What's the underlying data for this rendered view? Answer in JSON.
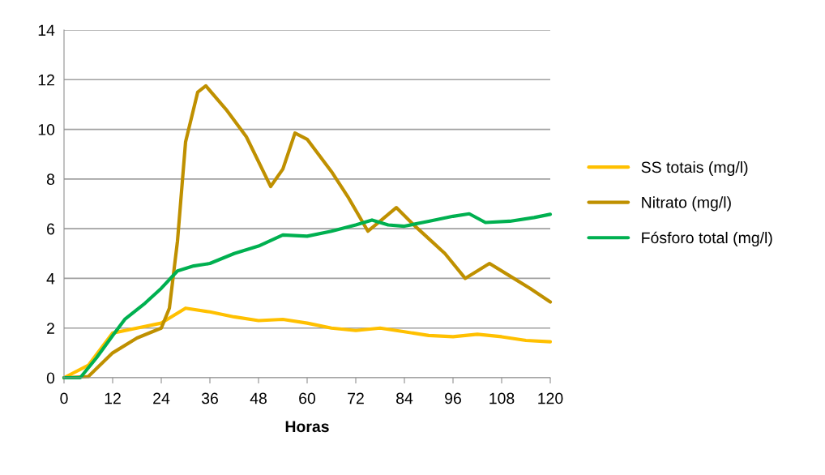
{
  "chart_data": {
    "type": "line",
    "xlabel": "Horas",
    "xlim": [
      0,
      120
    ],
    "xticks": [
      0,
      12,
      24,
      36,
      48,
      60,
      72,
      84,
      96,
      108,
      120
    ],
    "ylim": [
      0,
      14
    ],
    "yticks": [
      0,
      2,
      4,
      6,
      8,
      10,
      12,
      14
    ],
    "grid": "y",
    "legend": "right",
    "marker": "none",
    "line_style": "solid",
    "series": [
      {
        "name": "SS totais (mg/l)",
        "color": "#ffc000",
        "x": [
          0,
          6,
          12,
          18,
          24,
          30,
          36,
          42,
          48,
          54,
          60,
          66,
          72,
          78,
          84,
          90,
          96,
          102,
          108,
          114,
          120
        ],
        "values": [
          0,
          0.5,
          1.8,
          2.0,
          2.2,
          2.8,
          2.65,
          2.45,
          2.3,
          2.35,
          2.2,
          2.0,
          1.9,
          2.0,
          1.85,
          1.7,
          1.65,
          1.75,
          1.65,
          1.5,
          1.45
        ]
      },
      {
        "name": "Nitrato (mg/l)",
        "color": "#bf9000",
        "x": [
          0,
          6,
          12,
          18,
          24,
          26,
          28,
          30,
          33,
          35,
          40,
          45,
          51,
          54,
          57,
          60,
          66,
          70,
          75,
          78,
          82,
          86,
          90,
          94,
          99,
          105,
          110,
          115,
          120
        ],
        "values": [
          0,
          0.05,
          1.0,
          1.6,
          2.0,
          2.8,
          5.5,
          9.5,
          11.5,
          11.75,
          10.8,
          9.7,
          7.7,
          8.4,
          9.85,
          9.6,
          8.3,
          7.3,
          5.9,
          6.3,
          6.85,
          6.2,
          5.6,
          5.0,
          4.0,
          4.6,
          4.1,
          3.6,
          3.05
        ]
      },
      {
        "name": "Fósforo total (mg/l)",
        "color": "#00b050",
        "x": [
          0,
          4,
          8,
          12,
          15,
          20,
          24,
          28,
          32,
          36,
          42,
          48,
          54,
          60,
          66,
          72,
          76,
          80,
          84,
          90,
          96,
          100,
          104,
          110,
          116,
          120
        ],
        "values": [
          0,
          0,
          0.8,
          1.7,
          2.35,
          3.0,
          3.6,
          4.3,
          4.5,
          4.6,
          5.0,
          5.3,
          5.75,
          5.7,
          5.9,
          6.15,
          6.35,
          6.15,
          6.1,
          6.3,
          6.5,
          6.6,
          6.25,
          6.3,
          6.45,
          6.58
        ]
      }
    ]
  }
}
